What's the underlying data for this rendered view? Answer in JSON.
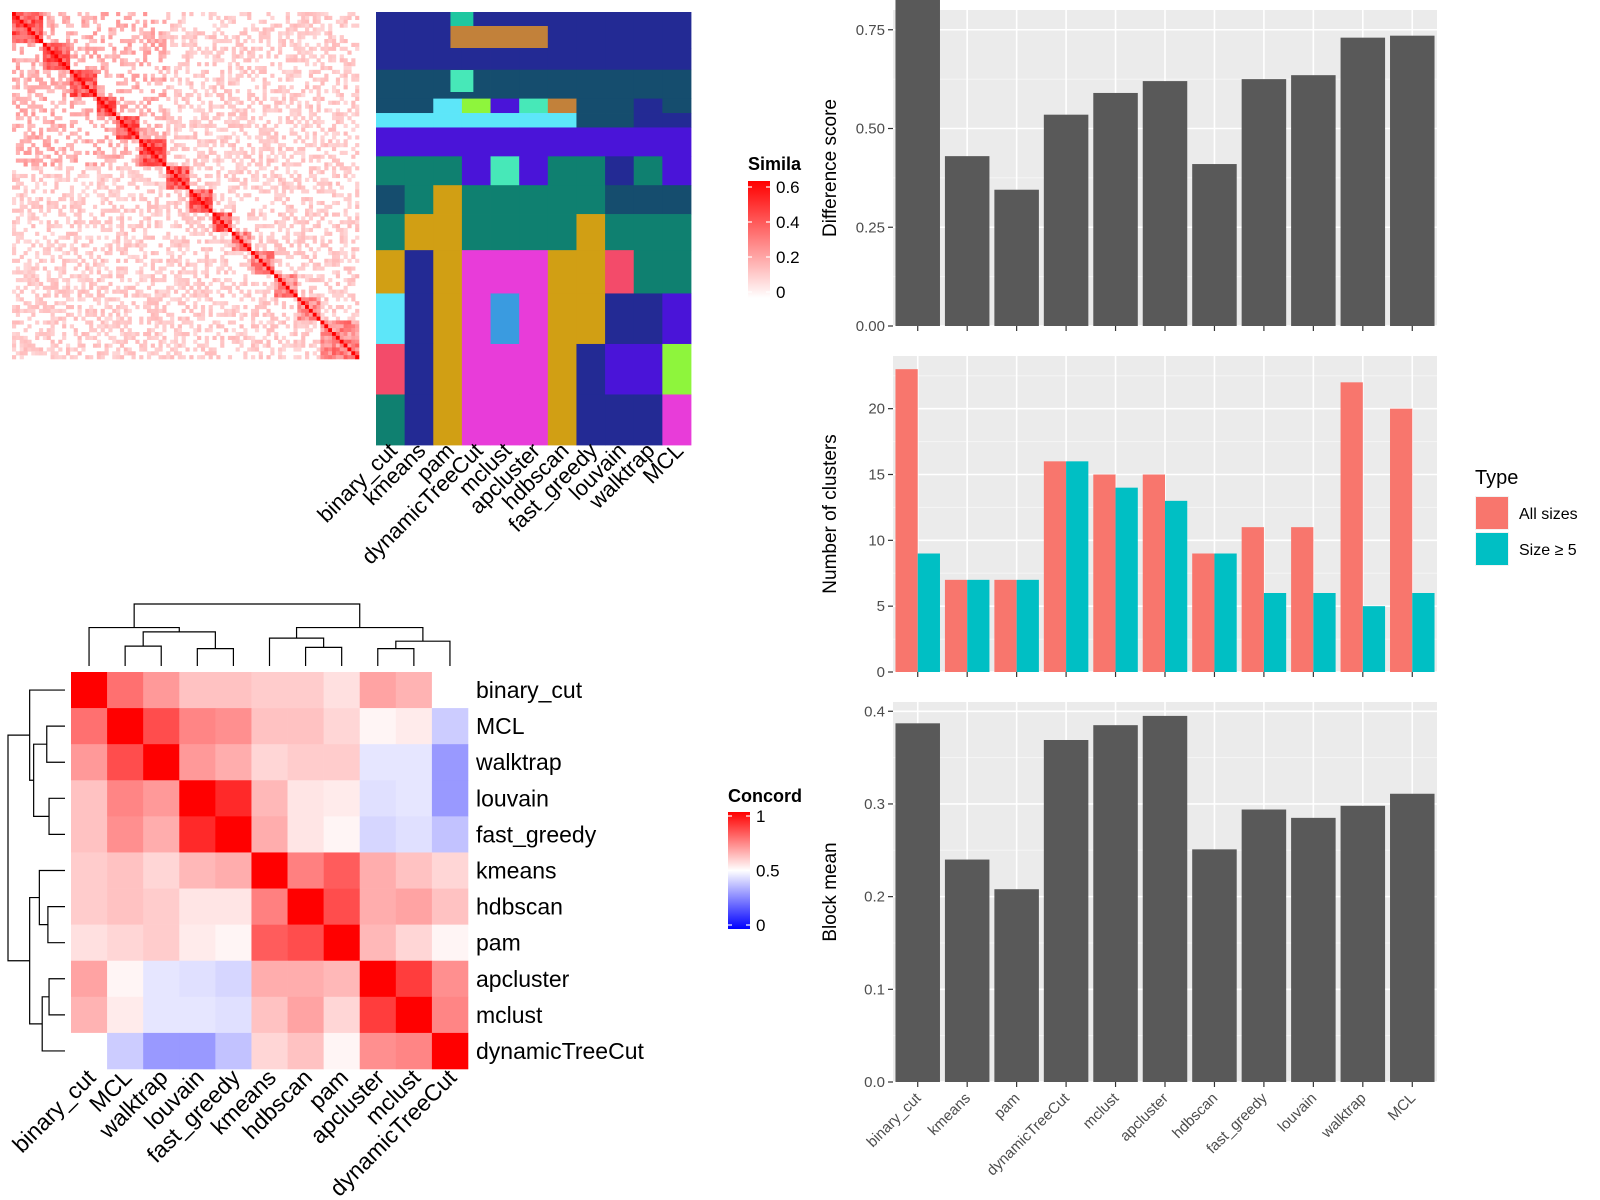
{
  "methods_order_bar": [
    "binary_cut",
    "kmeans",
    "pam",
    "dynamicTreeCut",
    "mclust",
    "apcluster",
    "hdbscan",
    "fast_greedy",
    "louvain",
    "walktrap",
    "MCL"
  ],
  "similarity_heatmap": {
    "legend_title": "Simila",
    "legend_ticks": [
      "0.6",
      "0.4",
      "0.2",
      "0"
    ],
    "color_low": "#ffffff",
    "color_high": "#ff0000",
    "x_labels": [
      "binary_cut",
      "kmeans",
      "pam",
      "dynamicTreeCut",
      "mclust",
      "apcluster",
      "hdbscan",
      "fast_greedy",
      "louvain",
      "walktrap",
      "MCL"
    ]
  },
  "concordance_heatmap": {
    "legend_title": "Concord",
    "legend_ticks": [
      "1",
      "0.5",
      "0"
    ],
    "color_low": "#0000ff",
    "color_mid": "#ffffff",
    "color_high": "#ff0000",
    "labels": [
      "binary_cut",
      "MCL",
      "walktrap",
      "louvain",
      "fast_greedy",
      "kmeans",
      "hdbscan",
      "pam",
      "apcluster",
      "mclust",
      "dynamicTreeCut"
    ],
    "matrix": [
      [
        1.0,
        0.78,
        0.7,
        0.62,
        0.62,
        0.6,
        0.6,
        0.56,
        0.68,
        0.65,
        0.5
      ],
      [
        0.78,
        1.0,
        0.85,
        0.74,
        0.72,
        0.62,
        0.62,
        0.58,
        0.52,
        0.54,
        0.4
      ],
      [
        0.7,
        0.85,
        1.0,
        0.7,
        0.66,
        0.58,
        0.6,
        0.6,
        0.45,
        0.45,
        0.3
      ],
      [
        0.62,
        0.74,
        0.7,
        1.0,
        0.92,
        0.64,
        0.55,
        0.54,
        0.44,
        0.45,
        0.3
      ],
      [
        0.62,
        0.72,
        0.66,
        0.92,
        1.0,
        0.66,
        0.55,
        0.52,
        0.42,
        0.44,
        0.38
      ],
      [
        0.6,
        0.62,
        0.58,
        0.64,
        0.66,
        1.0,
        0.75,
        0.82,
        0.66,
        0.62,
        0.58
      ],
      [
        0.6,
        0.62,
        0.6,
        0.55,
        0.55,
        0.75,
        1.0,
        0.85,
        0.66,
        0.68,
        0.62
      ],
      [
        0.56,
        0.58,
        0.6,
        0.54,
        0.52,
        0.82,
        0.85,
        1.0,
        0.64,
        0.58,
        0.52
      ],
      [
        0.68,
        0.52,
        0.45,
        0.44,
        0.42,
        0.66,
        0.66,
        0.64,
        1.0,
        0.88,
        0.72
      ],
      [
        0.65,
        0.54,
        0.45,
        0.45,
        0.44,
        0.62,
        0.68,
        0.58,
        0.88,
        1.0,
        0.74
      ],
      [
        0.5,
        0.4,
        0.3,
        0.3,
        0.38,
        0.58,
        0.62,
        0.52,
        0.72,
        0.74,
        1.0
      ]
    ]
  },
  "chart_data": [
    {
      "type": "bar",
      "categories": [
        "binary_cut",
        "kmeans",
        "pam",
        "dynamicTreeCut",
        "mclust",
        "apcluster",
        "hdbscan",
        "fast_greedy",
        "louvain",
        "walktrap",
        "MCL"
      ],
      "values": [
        0.86,
        0.43,
        0.345,
        0.535,
        0.59,
        0.62,
        0.41,
        0.625,
        0.635,
        0.73,
        0.735
      ],
      "ylabel": "Difference score",
      "ylim": [
        0,
        0.8
      ],
      "yticks": [
        "0.00",
        "0.25",
        "0.50",
        "0.75"
      ],
      "ytick_values": [
        0,
        0.25,
        0.5,
        0.75
      ],
      "bar_color": "#595959"
    },
    {
      "type": "bar",
      "categories": [
        "binary_cut",
        "kmeans",
        "pam",
        "dynamicTreeCut",
        "mclust",
        "apcluster",
        "hdbscan",
        "fast_greedy",
        "louvain",
        "walktrap",
        "MCL"
      ],
      "series": [
        {
          "name": "All sizes",
          "color": "#f8766d",
          "values": [
            23,
            7,
            7,
            16,
            15,
            15,
            9,
            11,
            11,
            22,
            20
          ]
        },
        {
          "name": "Size ≥ 5",
          "color": "#00bfc4",
          "values": [
            9,
            7,
            7,
            16,
            14,
            13,
            9,
            6,
            6,
            5,
            6
          ]
        }
      ],
      "ylabel": "Number of clusters",
      "ylim": [
        0,
        24
      ],
      "yticks": [
        "0",
        "5",
        "10",
        "15",
        "20"
      ],
      "ytick_values": [
        0,
        5,
        10,
        15,
        20
      ],
      "legend_title": "Type",
      "legend": "right"
    },
    {
      "type": "bar",
      "categories": [
        "binary_cut",
        "kmeans",
        "pam",
        "dynamicTreeCut",
        "mclust",
        "apcluster",
        "hdbscan",
        "fast_greedy",
        "louvain",
        "walktrap",
        "MCL"
      ],
      "values": [
        0.387,
        0.24,
        0.208,
        0.369,
        0.385,
        0.395,
        0.251,
        0.294,
        0.285,
        0.298,
        0.311
      ],
      "ylabel": "Block mean",
      "ylim": [
        0,
        0.41
      ],
      "yticks": [
        "0.0",
        "0.1",
        "0.2",
        "0.3",
        "0.4"
      ],
      "ytick_values": [
        0,
        0.1,
        0.2,
        0.3,
        0.4
      ],
      "bar_color": "#595959"
    }
  ]
}
